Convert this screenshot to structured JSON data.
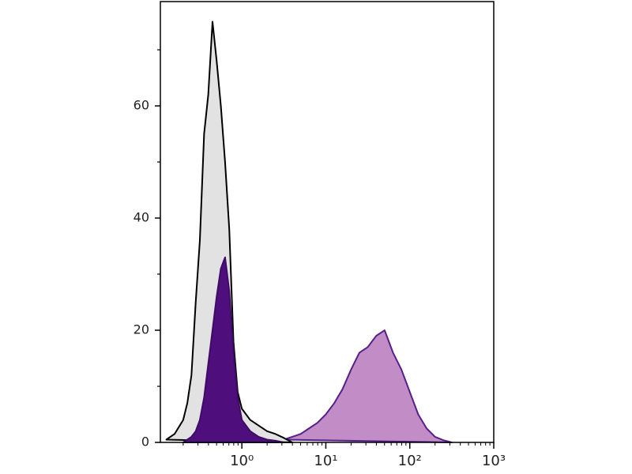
{
  "chart_data": {
    "type": "area",
    "xscale": "log",
    "xlim": [
      0.107,
      1000
    ],
    "ylim": [
      0,
      78.6
    ],
    "xticks": [
      {
        "value": 1,
        "label": "10⁰"
      },
      {
        "value": 10,
        "label": "10¹"
      },
      {
        "value": 100,
        "label": "10²"
      },
      {
        "value": 1000,
        "label": "10³"
      }
    ],
    "xminor": [
      0.2,
      0.3,
      0.4,
      0.5,
      0.6,
      0.7,
      0.8,
      0.9,
      2,
      3,
      4,
      5,
      6,
      7,
      8,
      9,
      20,
      30,
      40,
      50,
      60,
      70,
      80,
      90,
      200,
      300,
      400,
      500,
      600,
      700,
      800,
      900
    ],
    "yticks": [
      0,
      20,
      40,
      60
    ],
    "yminor": [
      10,
      30,
      50,
      70
    ],
    "series": [
      {
        "color": "#c28cc6",
        "stroke": "#56208a",
        "x": [
          3.16,
          3.98,
          5.01,
          6.31,
          7.94,
          10,
          12.6,
          15.8,
          20,
          25.1,
          31.6,
          39.8,
          50.1,
          63.1,
          79.4,
          100,
          125.9,
          158.5,
          199.5,
          251.2,
          316.2
        ],
        "values": [
          0.5,
          1,
          1.5,
          2.5,
          3.5,
          5,
          7,
          9.5,
          13,
          16,
          17,
          19,
          20,
          16,
          13,
          9,
          5,
          2.5,
          1,
          0.4,
          0
        ]
      },
      {
        "color": "#e2e2e2",
        "stroke": "#000000",
        "x": [
          0.126,
          0.158,
          0.2,
          0.224,
          0.251,
          0.282,
          0.316,
          0.355,
          0.398,
          0.447,
          0.501,
          0.562,
          0.631,
          0.708,
          0.794,
          0.891,
          1,
          1.259,
          1.585,
          1.995,
          2.512,
          3.162,
          3.98
        ],
        "values": [
          0.5,
          1.5,
          4,
          7,
          12,
          25,
          36,
          55,
          62,
          75,
          68,
          60,
          50,
          38,
          18,
          9,
          6,
          4,
          3,
          2,
          1.5,
          0.8,
          0
        ]
      },
      {
        "color": "#4e0f7c",
        "stroke": "#3f0a68",
        "x": [
          0.2,
          0.251,
          0.282,
          0.316,
          0.355,
          0.398,
          0.447,
          0.501,
          0.562,
          0.631,
          0.708,
          0.794,
          0.891,
          1,
          1.259,
          1.585,
          1.995,
          2.512,
          3.162
        ],
        "values": [
          0,
          1,
          2,
          4,
          8,
          14,
          20,
          26,
          31,
          33,
          27,
          16,
          8,
          4,
          2,
          1,
          0.5,
          0.3,
          0
        ]
      }
    ]
  }
}
